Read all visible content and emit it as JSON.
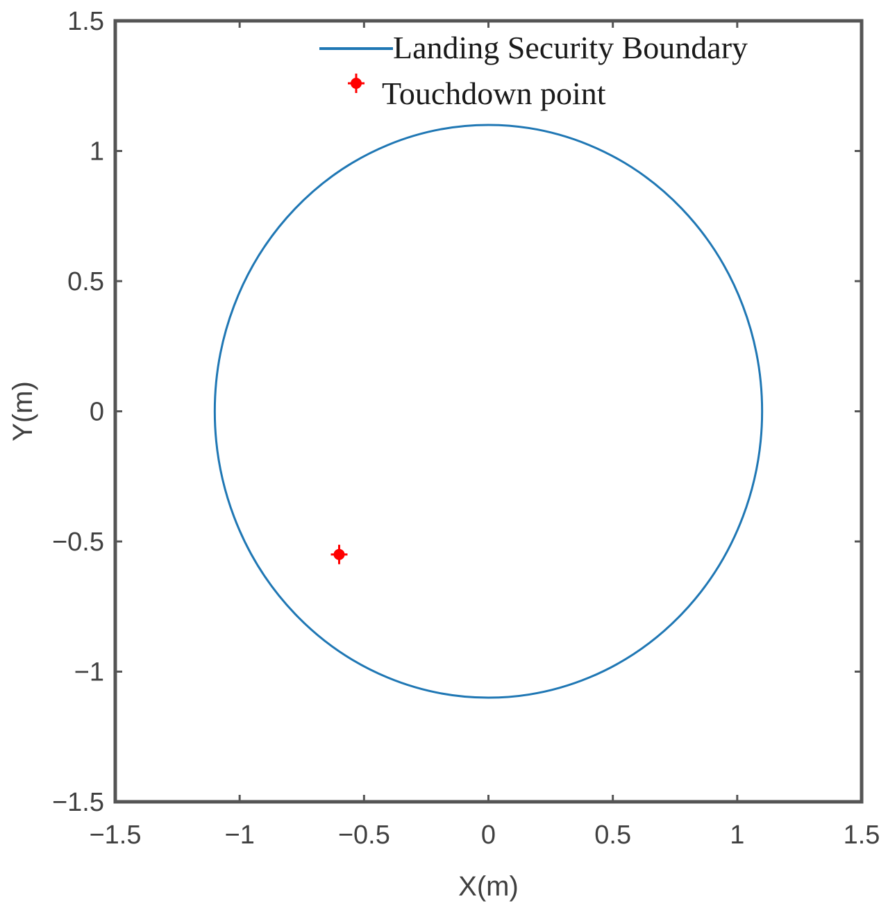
{
  "chart_data": {
    "type": "scatter",
    "xlabel": "X(m)",
    "ylabel": "Y(m)",
    "xlim": [
      -1.5,
      1.5
    ],
    "ylim": [
      -1.5,
      1.5
    ],
    "xticks": [
      -1.5,
      -1,
      -0.5,
      0,
      0.5,
      1,
      1.5
    ],
    "yticks": [
      -1.5,
      -1,
      -0.5,
      0,
      0.5,
      1,
      1.5
    ],
    "xtick_labels": [
      "−1.5",
      "−1",
      "−0.5",
      "0",
      "0.5",
      "1",
      "1.5"
    ],
    "ytick_labels": [
      "−1.5",
      "−1",
      "−0.5",
      "0",
      "0.5",
      "1",
      "1.5"
    ],
    "grid": false,
    "legend_position": "top-right",
    "series": [
      {
        "name": "Landing Security Boundary",
        "kind": "circle",
        "center": [
          0,
          0
        ],
        "radius": 1.1,
        "color": "#1f77b4"
      },
      {
        "name": "Touchdown point",
        "kind": "point",
        "x": [
          -0.6
        ],
        "y": [
          -0.55
        ],
        "marker": "*",
        "color": "#ff0000"
      }
    ]
  }
}
